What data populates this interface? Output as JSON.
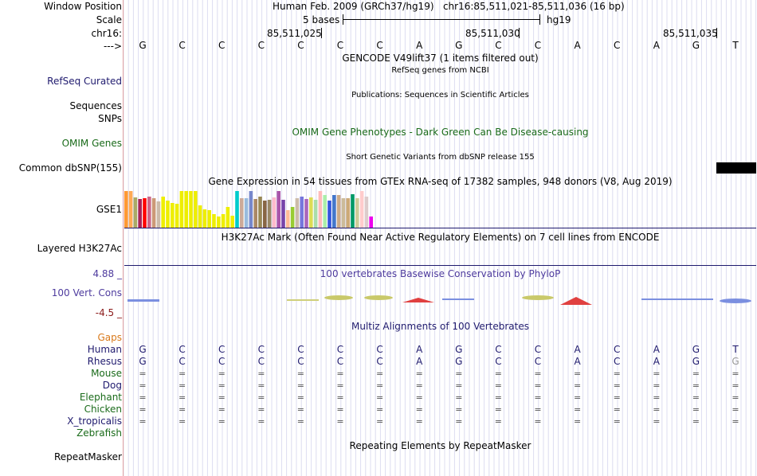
{
  "header": {
    "window_position_label": "Window Position",
    "window_position_value": "Human Feb. 2009 (GRCh37/hg19)   chr16:85,511,021-85,511,036 (16 bp)",
    "scale_label": "Scale",
    "scale_text": "5 bases",
    "scale_assembly": "hg19",
    "chrom_label": "chr16:",
    "coord_ticks": [
      "85,511,025",
      "85,511,030",
      "85,511,035"
    ],
    "strand_label": "--->"
  },
  "reference_bases": [
    "G",
    "C",
    "C",
    "C",
    "C",
    "C",
    "C",
    "A",
    "G",
    "C",
    "C",
    "A",
    "C",
    "A",
    "G",
    "T"
  ],
  "tracks": {
    "gencode_title": "GENCODE V49lift37 (1 items filtered out)",
    "refseq_subtitle": "RefSeq genes from NCBI",
    "refseq_label": "RefSeq Curated",
    "publications_subtitle": "Publications: Sequences in Scientific Articles",
    "sequences_label": "Sequences",
    "snps_label": "SNPs",
    "omim_title": "OMIM Gene Phenotypes - Dark Green Can Be Disease-causing",
    "omim_label": "OMIM Genes",
    "dbsnp_subtitle": "Short Genetic Variants from dbSNP release 155",
    "dbsnp_label": "Common dbSNP(155)",
    "gtex_title": "Gene Expression in 54 tissues from GTEx RNA-seq of 17382 samples, 948 donors (V8, Aug 2019)",
    "gtex_label": "GSE1",
    "h3k27ac_title": "H3K27Ac Mark (Often Found Near Active Regulatory Elements) on 7 cell lines from ENCODE",
    "h3k27ac_label": "Layered H3K27Ac",
    "phylop_title": "100 vertebrates Basewise Conservation by PhyloP",
    "phylop_max": "4.88 _",
    "phylop_label": "100 Vert. Cons",
    "phylop_min": "-4.5 _",
    "multiz_title": "Multiz Alignments of 100 Vertebrates",
    "gaps_label": "Gaps",
    "repeat_title": "Repeating Elements by RepeatMasker",
    "repeat_label": "RepeatMasker"
  },
  "species": [
    {
      "name": "Human",
      "row": [
        "G",
        "C",
        "C",
        "C",
        "C",
        "C",
        "C",
        "A",
        "G",
        "C",
        "C",
        "A",
        "C",
        "A",
        "G",
        "T"
      ]
    },
    {
      "name": "Rhesus",
      "row": [
        "G",
        "C",
        "C",
        "C",
        "C",
        "C",
        "C",
        "A",
        "G",
        "C",
        "C",
        "A",
        "C",
        "A",
        "G",
        "G"
      ]
    },
    {
      "name": "Mouse",
      "row": [
        "=",
        "=",
        "=",
        "=",
        "=",
        "=",
        "=",
        "=",
        "=",
        "=",
        "=",
        "=",
        "=",
        "=",
        "=",
        "="
      ]
    },
    {
      "name": "Dog",
      "row": [
        "=",
        "=",
        "=",
        "=",
        "=",
        "=",
        "=",
        "=",
        "=",
        "=",
        "=",
        "=",
        "=",
        "=",
        "=",
        "="
      ]
    },
    {
      "name": "Elephant",
      "row": [
        "=",
        "=",
        "=",
        "=",
        "=",
        "=",
        "=",
        "=",
        "=",
        "=",
        "=",
        "=",
        "=",
        "=",
        "=",
        "="
      ]
    },
    {
      "name": "Chicken",
      "row": [
        "=",
        "=",
        "=",
        "=",
        "=",
        "=",
        "=",
        "=",
        "=",
        "=",
        "=",
        "=",
        "=",
        "=",
        "=",
        "="
      ]
    },
    {
      "name": "X_tropicalis",
      "row": [
        "=",
        "=",
        "=",
        "=",
        "=",
        "=",
        "=",
        "=",
        "=",
        "=",
        "=",
        "=",
        "=",
        "=",
        "=",
        "="
      ]
    },
    {
      "name": "Zebrafish",
      "row": []
    }
  ],
  "gtex_expression": [
    0.95,
    0.95,
    0.8,
    0.75,
    0.78,
    0.82,
    0.78,
    0.68,
    0.82,
    0.7,
    0.65,
    0.62,
    0.95,
    0.95,
    0.95,
    0.95,
    0.58,
    0.48,
    0.45,
    0.35,
    0.3,
    0.35,
    0.55,
    0.32,
    0.95,
    0.78,
    0.78,
    0.95,
    0.75,
    0.82,
    0.7,
    0.72,
    0.8,
    0.95,
    0.72,
    0.45,
    0.55,
    0.78,
    0.82,
    0.75,
    0.8,
    0.72,
    0.95,
    0.85,
    0.7,
    0.85,
    0.85,
    0.78,
    0.78,
    0.88,
    0.78,
    0.95,
    0.82,
    0.3
  ],
  "gtex_colors": [
    "#ff9933",
    "#ffaa55",
    "#aaaa66",
    "#aa2255",
    "#ff0000",
    "#cc6688",
    "#cc9977",
    "#ccbbaa",
    "#eeee00",
    "#eeee00",
    "#eeee00",
    "#eeee00",
    "#eeee00",
    "#eeee00",
    "#eeee00",
    "#eeee00",
    "#eeee00",
    "#eeee00",
    "#eeee00",
    "#eeee00",
    "#eeee00",
    "#eeee00",
    "#eeee00",
    "#eeee00",
    "#00cccc",
    "#ccaa99",
    "#99bbdd",
    "#7788cc",
    "#aa8866",
    "#998855",
    "#886644",
    "#998866",
    "#ffbbcc",
    "#aa55aa",
    "#7744aa",
    "#ffbb99",
    "#99cc33",
    "#ccbbaa",
    "#7777dd",
    "#aa66bb",
    "#dddd55",
    "#aaddaa",
    "#ffbbbb",
    "#aaeeaa",
    "#3355dd",
    "#4477cc",
    "#ccaa88",
    "#ccbb99",
    "#ccaa77",
    "#009966",
    "#cccc99",
    "#ffcccc",
    "#ddcccc",
    "#ee00ee"
  ],
  "accent_colors": {
    "nav_blue": "#1f1a6e",
    "omim_green": "#1a6b1a",
    "gaps_orange": "#d9791a",
    "phylop_purple": "#4e3b9e"
  }
}
